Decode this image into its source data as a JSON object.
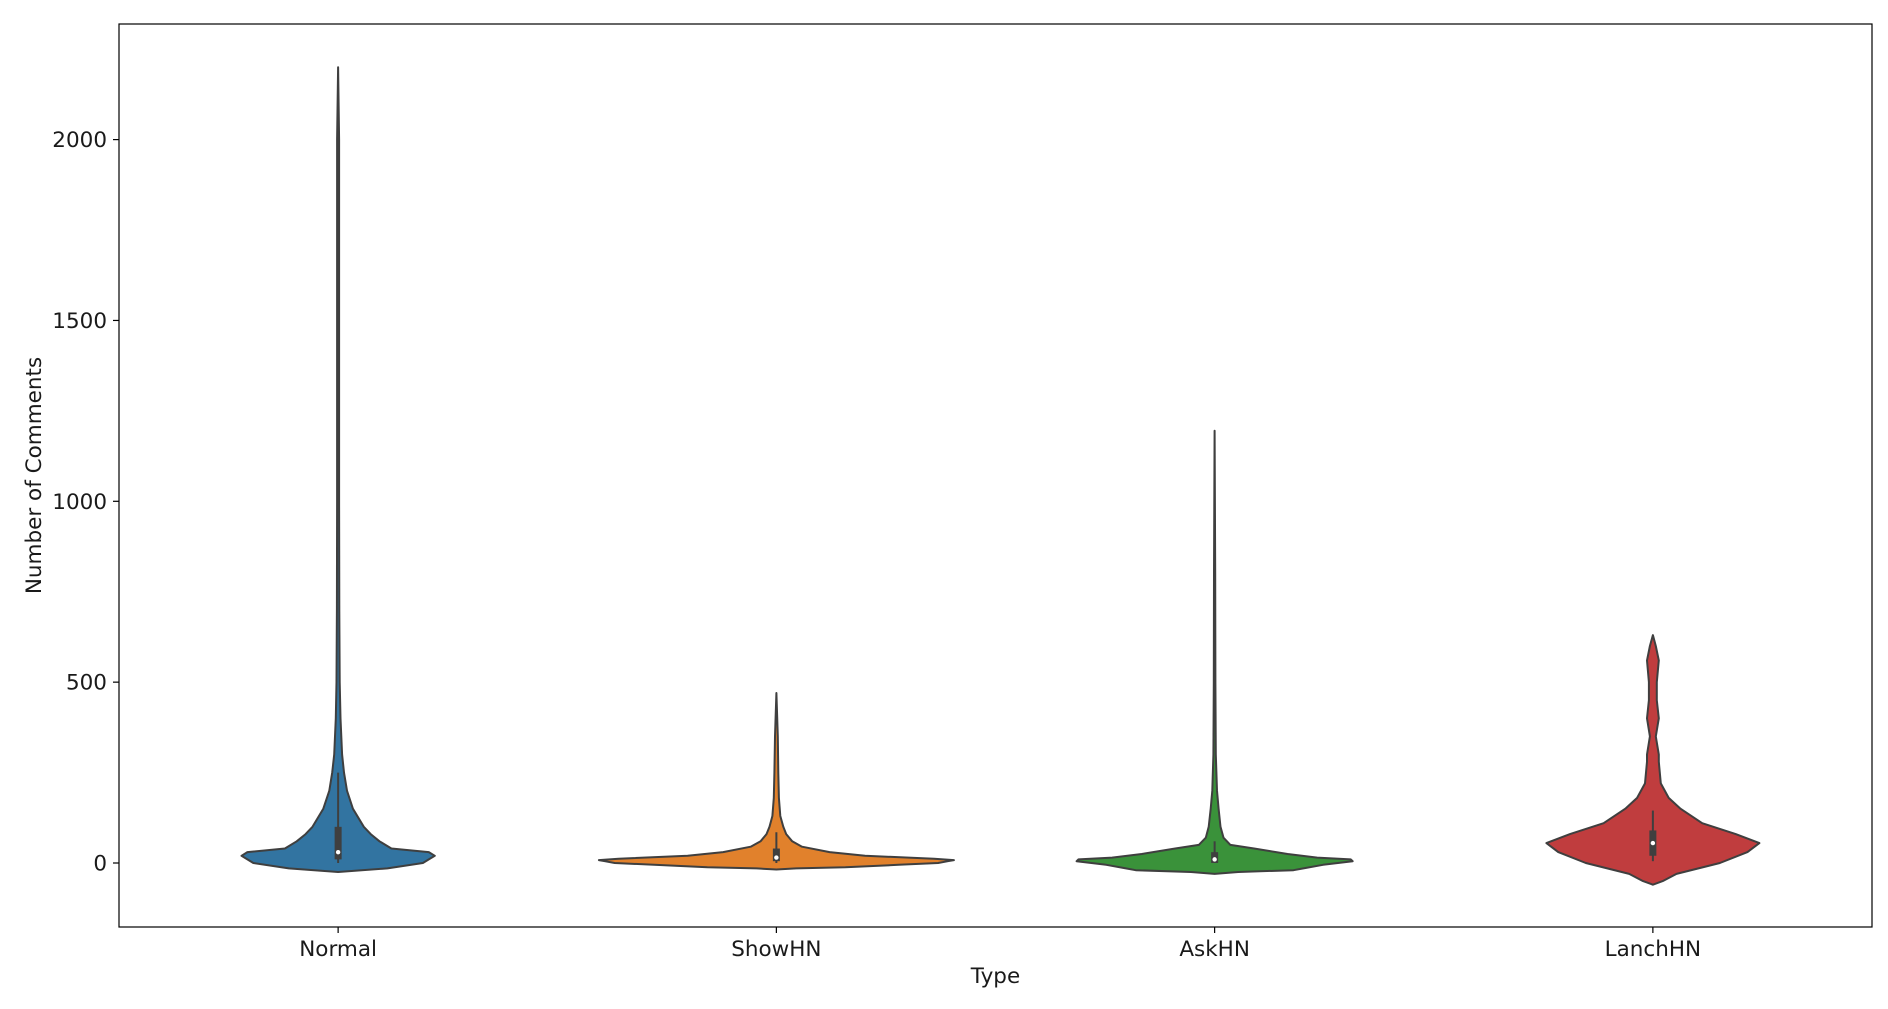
{
  "chart_data": {
    "type": "violin",
    "title": "",
    "xlabel": "Type",
    "ylabel": "Number of Comments",
    "ylim": [
      -175,
      2325
    ],
    "yticks": [
      0,
      500,
      1000,
      1500,
      2000
    ],
    "grid": false,
    "categories": [
      "Normal",
      "ShowHN",
      "AskHN",
      "LanchHN"
    ],
    "colors": [
      "#3274a1",
      "#e1812c",
      "#3a923a",
      "#c03d3e"
    ],
    "violins": [
      {
        "name": "Normal",
        "min": -25,
        "max": 2200,
        "box": {
          "q1": 10,
          "median": 30,
          "q3": 100,
          "whisker_low": 0,
          "whisker_high": 250
        },
        "profile": [
          [
            -25,
            0.0
          ],
          [
            -15,
            0.25
          ],
          [
            0,
            0.43
          ],
          [
            10,
            0.46
          ],
          [
            20,
            0.49
          ],
          [
            30,
            0.46
          ],
          [
            40,
            0.27
          ],
          [
            60,
            0.21
          ],
          [
            80,
            0.165
          ],
          [
            100,
            0.13
          ],
          [
            150,
            0.075
          ],
          [
            200,
            0.045
          ],
          [
            250,
            0.03
          ],
          [
            300,
            0.02
          ],
          [
            400,
            0.012
          ],
          [
            500,
            0.008
          ],
          [
            700,
            0.006
          ],
          [
            1000,
            0.005
          ],
          [
            2000,
            0.005
          ],
          [
            2200,
            0.0
          ]
        ]
      },
      {
        "name": "ShowHN",
        "min": -18,
        "max": 470,
        "box": {
          "q1": 5,
          "median": 15,
          "q3": 40,
          "whisker_low": 0,
          "whisker_high": 85
        },
        "profile": [
          [
            -18,
            0.0
          ],
          [
            -15,
            0.1
          ],
          [
            -12,
            0.35
          ],
          [
            -5,
            0.62
          ],
          [
            0,
            0.82
          ],
          [
            5,
            0.87
          ],
          [
            8,
            0.9
          ],
          [
            12,
            0.8
          ],
          [
            20,
            0.45
          ],
          [
            30,
            0.27
          ],
          [
            45,
            0.13
          ],
          [
            60,
            0.08
          ],
          [
            80,
            0.05
          ],
          [
            100,
            0.035
          ],
          [
            130,
            0.02
          ],
          [
            180,
            0.013
          ],
          [
            250,
            0.01
          ],
          [
            350,
            0.007
          ],
          [
            470,
            0.0
          ]
        ]
      },
      {
        "name": "AskHN",
        "min": -30,
        "max": 1195,
        "box": {
          "q1": 0,
          "median": 10,
          "q3": 30,
          "whisker_low": 0,
          "whisker_high": 60
        },
        "profile": [
          [
            -30,
            0.0
          ],
          [
            -25,
            0.12
          ],
          [
            -20,
            0.4
          ],
          [
            -15,
            0.45
          ],
          [
            -5,
            0.55
          ],
          [
            5,
            0.7
          ],
          [
            10,
            0.69
          ],
          [
            15,
            0.52
          ],
          [
            25,
            0.37
          ],
          [
            40,
            0.2
          ],
          [
            50,
            0.08
          ],
          [
            70,
            0.045
          ],
          [
            100,
            0.03
          ],
          [
            150,
            0.02
          ],
          [
            200,
            0.012
          ],
          [
            300,
            0.006
          ],
          [
            500,
            0.004
          ],
          [
            800,
            0.003
          ],
          [
            1195,
            0.0
          ]
        ]
      },
      {
        "name": "LanchHN",
        "min": -60,
        "max": 630,
        "box": {
          "q1": 20,
          "median": 55,
          "q3": 90,
          "whisker_low": 5,
          "whisker_high": 145
        },
        "profile": [
          [
            -60,
            0.0
          ],
          [
            -50,
            0.05
          ],
          [
            -30,
            0.12
          ],
          [
            0,
            0.34
          ],
          [
            30,
            0.48
          ],
          [
            55,
            0.54
          ],
          [
            80,
            0.42
          ],
          [
            110,
            0.25
          ],
          [
            150,
            0.14
          ],
          [
            180,
            0.08
          ],
          [
            220,
            0.04
          ],
          [
            280,
            0.03
          ],
          [
            300,
            0.03
          ],
          [
            350,
            0.015
          ],
          [
            400,
            0.03
          ],
          [
            450,
            0.02
          ],
          [
            500,
            0.02
          ],
          [
            560,
            0.03
          ],
          [
            600,
            0.015
          ],
          [
            630,
            0.0
          ]
        ]
      }
    ]
  }
}
